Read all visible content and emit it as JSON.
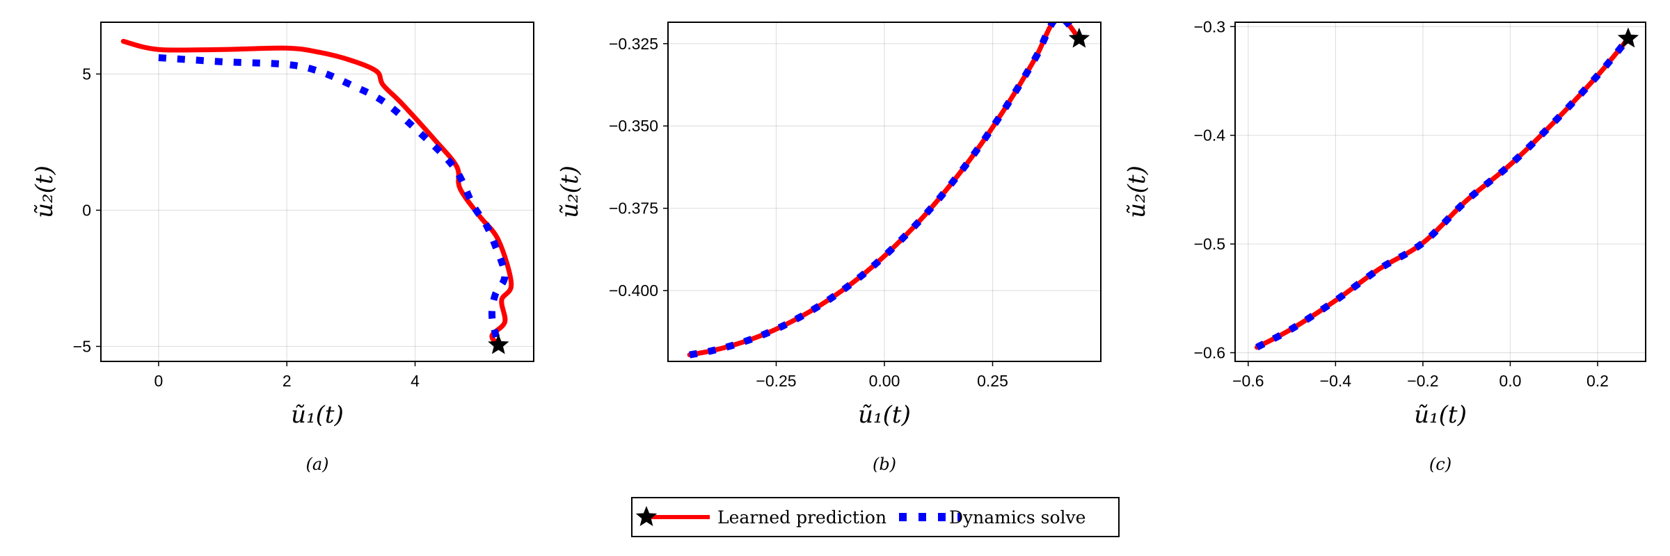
{
  "figure": {
    "legend": {
      "entries": [
        {
          "label": "Learned prediction",
          "color": "#ff0000",
          "style": "solid-with-star"
        },
        {
          "label": "Dynamics solve",
          "color": "#0000ff",
          "style": "dotted"
        }
      ]
    },
    "colors": {
      "learned": "#ff0000",
      "solve": "#0000ff",
      "star": "#000000"
    }
  },
  "chart_data": [
    {
      "type": "line",
      "panel_label": "(a)",
      "xlabel": "ũ₁(t)",
      "ylabel": "ũ₂(t)",
      "xlim": [
        -0.9,
        5.85
      ],
      "ylim": [
        -5.55,
        6.9
      ],
      "xticks": [
        0,
        2,
        4
      ],
      "xtick_labels": [
        "0",
        "2",
        "4"
      ],
      "yticks": [
        -5,
        0,
        5
      ],
      "ytick_labels": [
        "−5",
        "0",
        "5"
      ],
      "grid": true,
      "series": [
        {
          "name": "Learned prediction",
          "x": [
            -0.55,
            0,
            1,
            2,
            2.5,
            3.0,
            3.4,
            3.5,
            3.8,
            4.3,
            4.65,
            4.7,
            5.0,
            5.3,
            5.5,
            5.35,
            5.4,
            5.2,
            5.3
          ],
          "y": [
            6.2,
            5.9,
            5.9,
            5.95,
            5.8,
            5.5,
            5.1,
            4.6,
            3.9,
            2.6,
            1.6,
            0.8,
            -0.2,
            -1.1,
            -2.7,
            -3.3,
            -4.1,
            -4.6,
            -4.95
          ]
        },
        {
          "name": "Dynamics solve",
          "x": [
            0,
            1,
            2,
            2.5,
            3.0,
            3.5,
            4.0,
            4.6,
            4.9,
            5.1,
            5.25,
            5.4,
            5.25,
            5.2,
            5.3
          ],
          "y": [
            5.6,
            5.45,
            5.35,
            5.1,
            4.6,
            4.0,
            3.0,
            1.6,
            0.2,
            -0.5,
            -1.3,
            -2.4,
            -3.1,
            -3.9,
            -4.95
          ]
        }
      ],
      "marker": {
        "x": 5.3,
        "y": -4.95
      }
    },
    {
      "type": "line",
      "panel_label": "(b)",
      "xlabel": "ũ₁(t)",
      "ylabel": "ũ₂(t)",
      "xlim": [
        -0.5,
        0.5
      ],
      "ylim": [
        -0.4215,
        -0.3185
      ],
      "xticks": [
        -0.25,
        0,
        0.25
      ],
      "xtick_labels": [
        "−0.25",
        "0.00",
        "0.25"
      ],
      "yticks": [
        -0.4,
        -0.375,
        -0.35,
        -0.325
      ],
      "ytick_labels": [
        "−0.400",
        "−0.375",
        "−0.350",
        "−0.325"
      ],
      "grid": true,
      "series": [
        {
          "name": "Learned prediction",
          "x": [
            -0.45,
            -0.4,
            -0.35,
            -0.3,
            -0.25,
            -0.2,
            -0.15,
            -0.1,
            -0.05,
            0,
            0.05,
            0.1,
            0.15,
            0.2,
            0.25,
            0.3,
            0.35,
            0.4,
            0.45
          ],
          "y": [
            -0.4195,
            -0.4183,
            -0.4166,
            -0.4144,
            -0.4117,
            -0.4084,
            -0.4046,
            -0.4002,
            -0.3952,
            -0.3895,
            -0.3831,
            -0.3761,
            -0.3683,
            -0.3598,
            -0.3504,
            -0.3402,
            -0.3291,
            -0.3171,
            -0.3235
          ]
        },
        {
          "name": "Dynamics solve",
          "x": [
            -0.45,
            -0.4,
            -0.35,
            -0.3,
            -0.25,
            -0.2,
            -0.15,
            -0.1,
            -0.05,
            0,
            0.05,
            0.1,
            0.15,
            0.2,
            0.25,
            0.3,
            0.35,
            0.4,
            0.45
          ],
          "y": [
            -0.4195,
            -0.4183,
            -0.4166,
            -0.4144,
            -0.4117,
            -0.4084,
            -0.4046,
            -0.4002,
            -0.3952,
            -0.3895,
            -0.3831,
            -0.3761,
            -0.3683,
            -0.3598,
            -0.3504,
            -0.3402,
            -0.3291,
            -0.3171,
            -0.3235
          ]
        }
      ],
      "marker": {
        "x": 0.45,
        "y": -0.3235
      }
    },
    {
      "type": "line",
      "panel_label": "(c)",
      "xlabel": "ũ₁(t)",
      "ylabel": "ũ₂(t)",
      "xlim": [
        -0.63,
        0.31
      ],
      "ylim": [
        -0.608,
        -0.296
      ],
      "xticks": [
        -0.6,
        -0.4,
        -0.2,
        0,
        0.2
      ],
      "xtick_labels": [
        "−0.6",
        "−0.4",
        "−0.2",
        "0.0",
        "0.2"
      ],
      "yticks": [
        -0.6,
        -0.5,
        -0.4,
        -0.3
      ],
      "ytick_labels": [
        "−0.6",
        "−0.5",
        "−0.4",
        "−0.3"
      ],
      "grid": true,
      "series": [
        {
          "name": "Learned prediction",
          "x": [
            -0.58,
            -0.5,
            -0.4,
            -0.3,
            -0.2,
            -0.1,
            0,
            0.1,
            0.2,
            0.27
          ],
          "y": [
            -0.595,
            -0.578,
            -0.552,
            -0.523,
            -0.499,
            -0.46,
            -0.427,
            -0.388,
            -0.345,
            -0.311
          ]
        },
        {
          "name": "Dynamics solve",
          "x": [
            -0.58,
            -0.5,
            -0.4,
            -0.3,
            -0.2,
            -0.1,
            0,
            0.1,
            0.2,
            0.27
          ],
          "y": [
            -0.595,
            -0.578,
            -0.552,
            -0.523,
            -0.499,
            -0.46,
            -0.427,
            -0.388,
            -0.345,
            -0.311
          ]
        }
      ],
      "marker": {
        "x": 0.27,
        "y": -0.311
      }
    }
  ]
}
